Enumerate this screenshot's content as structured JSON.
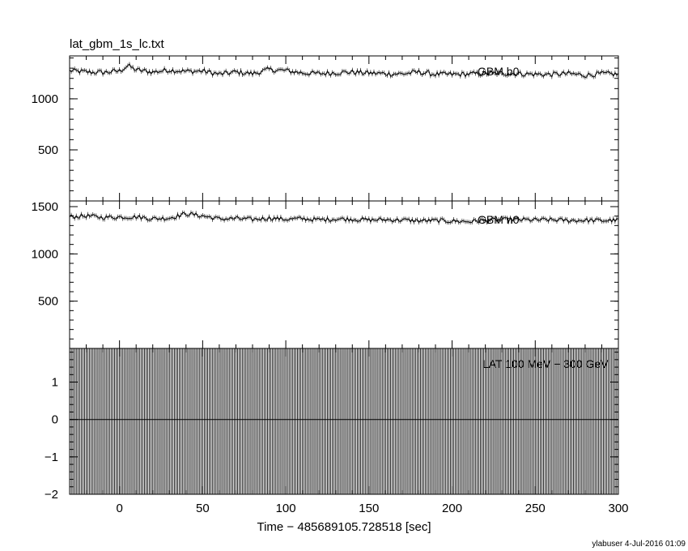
{
  "title": "lat_gbm_1s_lc.txt",
  "xlabel": "Time − 485689105.728518 [sec]",
  "footer": "ylabuser  4-Jul-2016 01:09",
  "chart_data": [
    {
      "type": "line",
      "title": "lat_gbm_1s_lc.txt",
      "panel_label": "GBM b0",
      "xlim": [
        -30,
        300
      ],
      "ylim": [
        0,
        1420
      ],
      "y_ticks": [
        500,
        1000
      ],
      "x_ticks": [
        0,
        50,
        100,
        150,
        200,
        250,
        300
      ],
      "x_tick_labels": [],
      "y_tick_labels": [
        "500",
        "1000"
      ],
      "series": [
        {
          "x": [
            -30,
            -20,
            -10,
            0,
            5,
            10,
            20,
            30,
            40,
            50,
            60,
            70,
            80,
            90,
            100,
            110,
            120,
            130,
            140,
            150,
            160,
            170,
            180,
            190,
            200,
            210,
            220,
            230,
            240,
            250,
            260,
            270,
            280,
            290,
            300
          ],
          "values": [
            1275,
            1262,
            1258,
            1272,
            1325,
            1282,
            1262,
            1283,
            1268,
            1272,
            1240,
            1262,
            1246,
            1286,
            1276,
            1254,
            1246,
            1256,
            1262,
            1252,
            1246,
            1244,
            1262,
            1240,
            1238,
            1242,
            1248,
            1250,
            1246,
            1240,
            1238,
            1246,
            1232,
            1245,
            1240
          ]
        }
      ]
    },
    {
      "type": "line",
      "panel_label": "GBM n0",
      "xlim": [
        -30,
        300
      ],
      "ylim": [
        0,
        1560
      ],
      "y_ticks": [
        500,
        1000,
        1500
      ],
      "x_ticks": [
        0,
        50,
        100,
        150,
        200,
        250,
        300
      ],
      "x_tick_labels": [],
      "y_tick_labels": [
        "500",
        "1000",
        "1500"
      ],
      "series": [
        {
          "x": [
            -30,
            -20,
            -10,
            0,
            10,
            20,
            30,
            40,
            50,
            60,
            70,
            80,
            90,
            100,
            110,
            120,
            130,
            140,
            150,
            160,
            170,
            180,
            190,
            200,
            210,
            220,
            230,
            240,
            250,
            260,
            270,
            280,
            290,
            300
          ],
          "values": [
            1392,
            1402,
            1386,
            1390,
            1392,
            1372,
            1380,
            1425,
            1402,
            1370,
            1374,
            1364,
            1380,
            1366,
            1372,
            1360,
            1370,
            1368,
            1358,
            1362,
            1358,
            1350,
            1352,
            1348,
            1342,
            1356,
            1360,
            1362,
            1358,
            1360,
            1354,
            1356,
            1352,
            1356
          ]
        }
      ]
    },
    {
      "type": "line",
      "panel_label": "LAT 100 MeV − 300 GeV",
      "xlim": [
        -30,
        300
      ],
      "ylim": [
        -2,
        1.9
      ],
      "y_ticks": [
        -2,
        -1,
        0,
        1
      ],
      "x_ticks": [
        0,
        50,
        100,
        150,
        200,
        250,
        300
      ],
      "x_tick_labels": [
        "0",
        "50",
        "100",
        "150",
        "200",
        "250",
        "300"
      ],
      "y_tick_labels": [
        "−2",
        "−1",
        "0",
        "1"
      ],
      "series": [
        {
          "x": [
            -30,
            300
          ],
          "values": [
            0,
            0
          ]
        }
      ]
    }
  ]
}
